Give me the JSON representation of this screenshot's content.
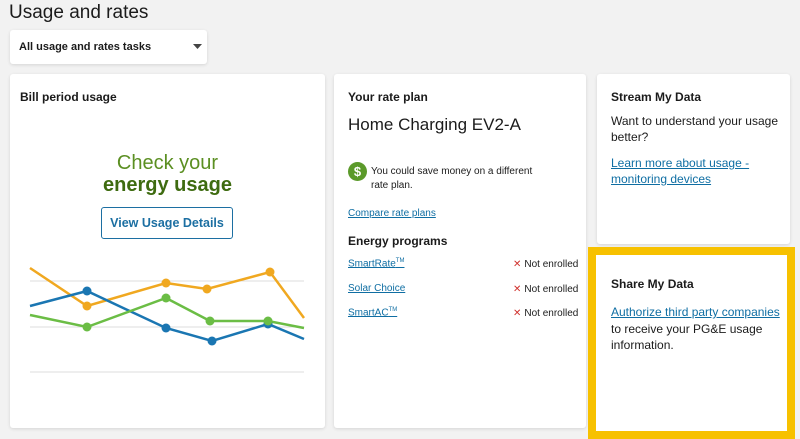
{
  "header": {
    "title": "Usage and rates",
    "dropdown": "All usage and rates tasks"
  },
  "bill_card": {
    "title": "Bill period usage",
    "promo_line1": "Check your",
    "promo_line2": "energy usage",
    "button": "View Usage Details"
  },
  "rate_card": {
    "title": "Your rate plan",
    "plan": "Home Charging EV2-A",
    "savings_note": "You could save money on a different rate plan.",
    "compare_link": "Compare rate plans",
    "programs_title": "Energy programs",
    "programs": [
      {
        "name": "SmartRate",
        "sup": "TM",
        "status": "Not enrolled"
      },
      {
        "name": "Solar Choice",
        "sup": null,
        "status": "Not enrolled"
      },
      {
        "name": "SmartAC",
        "sup": "TM",
        "status": "Not enrolled"
      }
    ]
  },
  "stream_card": {
    "title": "Stream My Data",
    "text": "Want to understand your usage better?",
    "link": "Learn more about usage - monitoring devices"
  },
  "share_card": {
    "title": "Share My Data",
    "link": "Authorize third party companies",
    "text": "to receive your PG&E usage information."
  }
}
